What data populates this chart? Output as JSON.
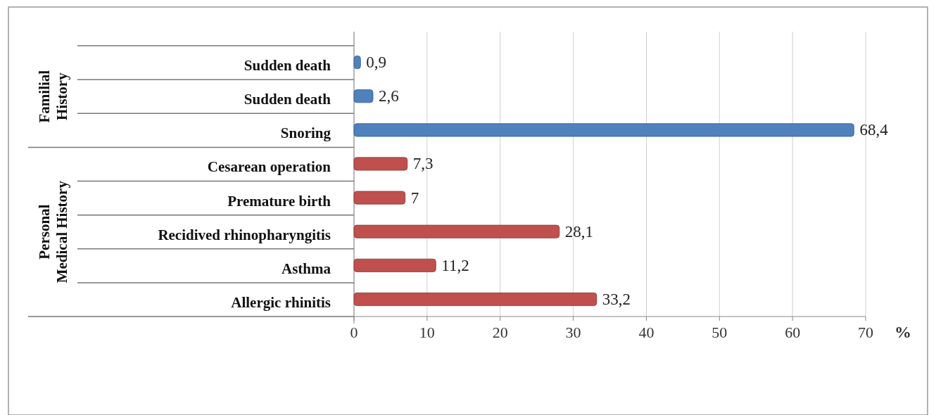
{
  "chart_data": {
    "type": "bar",
    "orientation": "horizontal",
    "xlabel": "%",
    "categories": [
      "Sudden death",
      "Sudden death",
      "Snoring",
      "Cesarean operation",
      "Premature birth",
      "Recidived rhinopharyngitis",
      "Asthma",
      "Allergic rhinitis"
    ],
    "values": [
      0.9,
      2.6,
      68.4,
      7.3,
      7,
      28.1,
      11.2,
      33.2
    ],
    "value_labels": [
      "0,9",
      "2,6",
      "68,4",
      "7,3",
      "7",
      "28,1",
      "11,2",
      "33,2"
    ],
    "colors": [
      "#4f81bd",
      "#4f81bd",
      "#4f81bd",
      "#c0504d",
      "#c0504d",
      "#c0504d",
      "#c0504d",
      "#c0504d"
    ],
    "xlim": [
      0,
      70
    ],
    "xticks": [
      0,
      10,
      20,
      30,
      40,
      50,
      60,
      70
    ],
    "grid": "x",
    "annotations": [
      "Familial History",
      "Personal Medical History"
    ]
  }
}
